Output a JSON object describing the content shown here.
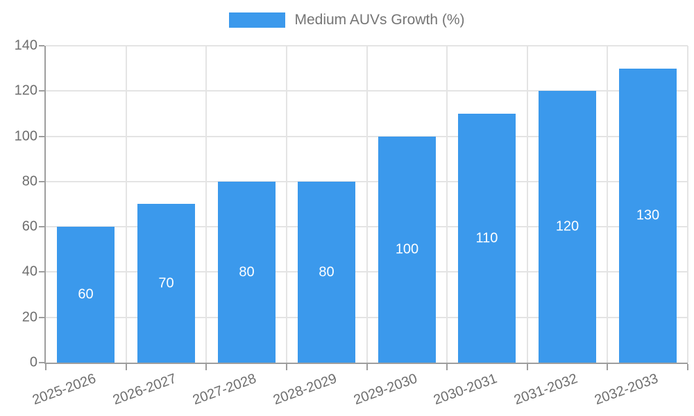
{
  "chart_data": {
    "type": "bar",
    "title": "",
    "xlabel": "",
    "ylabel": "",
    "legend": {
      "label": "Medium AUVs Growth (%)",
      "position": "top-center"
    },
    "categories": [
      "2025-2026",
      "2026-2027",
      "2027-2028",
      "2028-2029",
      "2029-2030",
      "2030-2031",
      "2031-2032",
      "2032-2033"
    ],
    "series": [
      {
        "name": "Medium AUVs Growth (%)",
        "values": [
          60,
          70,
          80,
          80,
          100,
          110,
          120,
          130
        ]
      }
    ],
    "bar_value_labels": [
      "60",
      "70",
      "80",
      "80",
      "100",
      "110",
      "120",
      "130"
    ],
    "ylim": [
      0,
      140
    ],
    "yticks": [
      0,
      20,
      40,
      60,
      80,
      100,
      120,
      140
    ],
    "grid": "horizontal and vertical, light gray",
    "x_label_rotation_deg": -20,
    "colors": {
      "bar": "#3b99ec",
      "axis": "#9e9e9e",
      "grid": "#e4e4e4",
      "tick_text": "#6e6e6e",
      "legend_text": "#757575",
      "bar_label_text": "#ffffff",
      "background": "#ffffff"
    }
  }
}
